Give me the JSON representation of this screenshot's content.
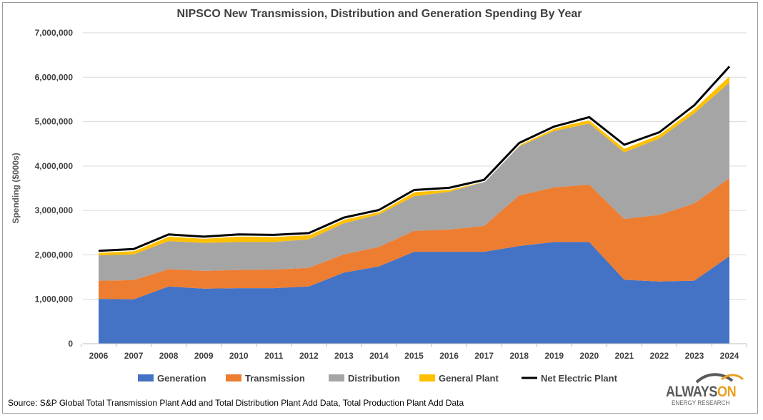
{
  "chart_data": {
    "type": "area",
    "title": "NIPSCO New Transmission, Distribution and Generation Spending By Year",
    "ylabel": "Spending ($000s)",
    "xlabel": "",
    "ylim": [
      0,
      7000000
    ],
    "yticks": [
      "0",
      "1,000,000",
      "2,000,000",
      "3,000,000",
      "4,000,000",
      "5,000,000",
      "6,000,000",
      "7,000,000"
    ],
    "categories": [
      "2006",
      "2007",
      "2008",
      "2009",
      "2010",
      "2011",
      "2012",
      "2013",
      "2014",
      "2015",
      "2016",
      "2017",
      "2018",
      "2019",
      "2020",
      "2021",
      "2022",
      "2023",
      "2024"
    ],
    "stacked": true,
    "grid": true,
    "legend_position": "bottom",
    "series": [
      {
        "name": "Generation",
        "color": "#4472c4",
        "values": [
          1010000,
          1000000,
          1290000,
          1240000,
          1250000,
          1250000,
          1290000,
          1600000,
          1740000,
          2070000,
          2070000,
          2070000,
          2200000,
          2290000,
          2290000,
          1440000,
          1400000,
          1420000,
          1970000
        ]
      },
      {
        "name": "Transmission",
        "color": "#ed7d31",
        "values": [
          410000,
          430000,
          390000,
          400000,
          410000,
          420000,
          420000,
          410000,
          440000,
          470000,
          500000,
          580000,
          1140000,
          1230000,
          1290000,
          1370000,
          1500000,
          1740000,
          1760000
        ]
      },
      {
        "name": "Distribution",
        "color": "#a5a5a5",
        "values": [
          570000,
          580000,
          630000,
          630000,
          630000,
          620000,
          640000,
          700000,
          730000,
          780000,
          850000,
          990000,
          1100000,
          1270000,
          1380000,
          1500000,
          1720000,
          2030000,
          2150000
        ]
      },
      {
        "name": "General Plant",
        "color": "#ffc000",
        "values": [
          80000,
          100000,
          140000,
          110000,
          160000,
          140000,
          130000,
          130000,
          100000,
          130000,
          50000,
          40000,
          60000,
          70000,
          70000,
          80000,
          80000,
          90000,
          140000
        ]
      }
    ],
    "line_series": {
      "name": "Net Electric Plant",
      "color": "#000000",
      "values": [
        2090000,
        2130000,
        2460000,
        2410000,
        2460000,
        2450000,
        2490000,
        2840000,
        3010000,
        3460000,
        3510000,
        3690000,
        4520000,
        4890000,
        5100000,
        4480000,
        4760000,
        5370000,
        6240000
      ]
    }
  },
  "source_text": "Source: S&P Global Total Transmission Plant Add and Total Distribution Plant Add Data, Total Production Plant Add Data",
  "logo": {
    "word_a": "ALWAYS",
    "word_b": "ON",
    "sub": "ENERGY RESEARCH",
    "accent": "#e8a020"
  }
}
